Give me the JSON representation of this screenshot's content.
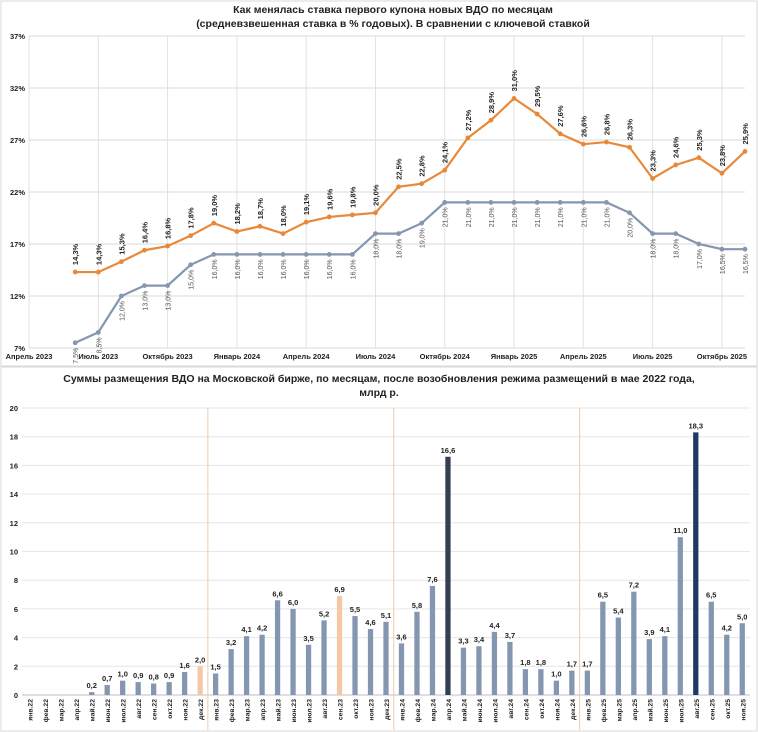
{
  "chart_data": [
    {
      "type": "line",
      "title_line1": "Как менялась ставка первого купона новых ВДО по месяцам",
      "title_line2": "(средневзвешенная ставка в % годовых). В сравнении с ключевой ставкой",
      "yticks": [
        "7%",
        "12%",
        "17%",
        "22%",
        "27%",
        "32%",
        "37%"
      ],
      "ylim": [
        7,
        37
      ],
      "xlim_months": [
        0,
        31
      ],
      "xticks": [
        {
          "m": 0,
          "label": "Апрель 2023"
        },
        {
          "m": 3,
          "label": "Июль 2023"
        },
        {
          "m": 6,
          "label": "Октябрь 2023"
        },
        {
          "m": 9,
          "label": "Январь 2024"
        },
        {
          "m": 12,
          "label": "Апрель 2024"
        },
        {
          "m": 15,
          "label": "Июль 2024"
        },
        {
          "m": 18,
          "label": "Октябрь 2024"
        },
        {
          "m": 21,
          "label": "Январь 2025"
        },
        {
          "m": 24,
          "label": "Апрель 2025"
        },
        {
          "m": 27,
          "label": "Июль 2025"
        },
        {
          "m": 30,
          "label": "Октябрь 2025"
        }
      ],
      "series": [
        {
          "name": "Ставка первого купона ВДО",
          "color": "#E8893A",
          "start_month": 2,
          "values": [
            14.3,
            14.3,
            15.3,
            16.4,
            16.8,
            17.8,
            19.0,
            18.2,
            18.7,
            18.0,
            19.1,
            19.6,
            19.8,
            20.0,
            22.5,
            22.8,
            24.1,
            27.2,
            28.9,
            31.0,
            29.5,
            27.6,
            26.6,
            26.8,
            26.3,
            23.3,
            24.6,
            25.3,
            23.8,
            25.9
          ],
          "labels": [
            "14,3%",
            "14,3%",
            "15,3%",
            "16,4%",
            "",
            "17,8%",
            "19,0%",
            "18,2%",
            "18,7%",
            "18,0%",
            "19,1%",
            "19,6%",
            "19,8%",
            "20,0%",
            "22,5%",
            "22,8%",
            "24,1%",
            "27,2%",
            "28,9%",
            "31,0%",
            "29,5%",
            "27,6%",
            "26,6%",
            "26,8%",
            "26,3%",
            "23,3%",
            "24,6%",
            "25,3%",
            "23,8%",
            "25,9%"
          ]
        },
        {
          "name": "Ключевая ставка",
          "color": "#8496B0",
          "start_month": 2,
          "values": [
            7.5,
            8.5,
            12.0,
            13.0,
            13.0,
            15.0,
            16.0,
            16.0,
            16.0,
            16.0,
            16.0,
            16.0,
            16.0,
            18.0,
            18.0,
            19.0,
            21.0,
            21.0,
            21.0,
            21.0,
            21.0,
            21.0,
            21.0,
            21.0,
            20.0,
            18.0,
            18.0,
            17.0,
            16.5,
            16.5
          ],
          "labels": [
            "7,5%",
            "8,5%",
            "12,0%",
            "13,0%",
            "13,0%",
            "15,0%",
            "16,0%",
            "16,0%",
            "16,0%",
            "16,0%",
            "16,0%",
            "16,0%",
            "16,0%",
            "18,0%",
            "18,0%",
            "19,0%",
            "21,0%",
            "21,0%",
            "21,0%",
            "21,0%",
            "21,0%",
            "21,0%",
            "21,0%",
            "21,0%",
            "20,0%",
            "18,0%",
            "18,0%",
            "17,0%",
            "16,5%",
            "16,5%"
          ]
        }
      ],
      "extra_label": "16,8%"
    },
    {
      "type": "bar",
      "title_line1": "Суммы размещения ВДО на Московской бирже, по месяцам, после возобновления режима размещений в мае 2022 года,",
      "title_line2": "млрд р.",
      "ylim": [
        0,
        20
      ],
      "yticks": [
        "0",
        "2",
        "4",
        "6",
        "8",
        "10",
        "12",
        "14",
        "16",
        "18",
        "20"
      ],
      "categories": [
        "янв.22",
        "фев.22",
        "мар.22",
        "апр.22",
        "май.22",
        "июн.22",
        "июл.22",
        "авг.22",
        "сен.22",
        "окт.22",
        "ноя.22",
        "дек.22",
        "янв.23",
        "фев.23",
        "мар.23",
        "апр.23",
        "май.23",
        "июн.23",
        "июл.23",
        "авг.23",
        "сен.23",
        "окт.23",
        "ноя.23",
        "дек.23",
        "янв.24",
        "фев.24",
        "мар.24",
        "апр.24",
        "май.24",
        "июн.24",
        "июл.24",
        "авг.24",
        "сен.24",
        "окт.24",
        "ноя.24",
        "дек.24",
        "янв.25",
        "фев.25",
        "мар.25",
        "апр.25",
        "май.25",
        "июн.25",
        "июл.25",
        "авг.25",
        "сен.25",
        "окт.25",
        "ноя.25"
      ],
      "values": [
        0,
        0,
        0,
        0,
        0.2,
        0.7,
        1.0,
        0.9,
        0.8,
        0.9,
        1.6,
        2.0,
        1.5,
        3.2,
        4.1,
        4.2,
        6.6,
        6.0,
        3.5,
        5.2,
        6.9,
        5.5,
        4.6,
        5.1,
        3.6,
        5.8,
        7.6,
        16.6,
        3.3,
        3.4,
        4.4,
        3.7,
        1.8,
        1.8,
        1.0,
        1.7,
        1.7,
        6.5,
        5.4,
        7.2,
        3.9,
        4.1,
        11.0,
        18.3,
        6.5,
        4.2,
        5.0
      ],
      "value_labels": [
        "",
        "",
        "",
        "",
        "0,2",
        "0,7",
        "1,0",
        "0,9",
        "0,8",
        "0,9",
        "1,6",
        "2,0",
        "1,5",
        "3,2",
        "4,1",
        "4,2",
        "6,6",
        "6,0",
        "3,5",
        "5,2",
        "6,9",
        "5,5",
        "4,6",
        "5,1",
        "3,6",
        "5,8",
        "7,6",
        "16,6",
        "3,3",
        "3,4",
        "4,4",
        "3,7",
        "1,8",
        "1,8",
        "1,0",
        "1,7",
        "1,7",
        "6,5",
        "5,4",
        "7,2",
        "3,9",
        "4,1",
        "11,0",
        "18,3",
        "6,5",
        "4,2",
        "5,0"
      ],
      "bar_colors": {
        "default": "#8496B0",
        "highlight_light": "#F4C7A6",
        "highlight_dark1": "#333F50",
        "highlight_dark2": "#1F3864"
      },
      "highlight_light_indices": [
        11,
        20
      ],
      "highlight_dark1_indices": [
        27
      ],
      "highlight_dark2_indices": [
        43
      ],
      "year_separators_after": [
        11,
        23,
        35
      ]
    }
  ]
}
